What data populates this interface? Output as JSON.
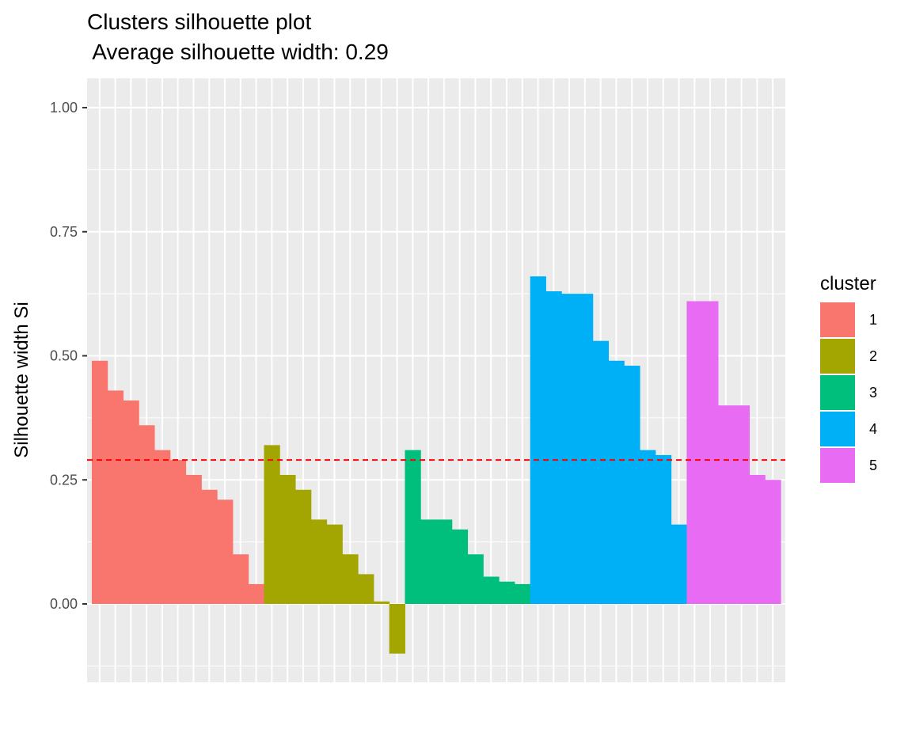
{
  "chart_data": {
    "type": "bar",
    "title": "Clusters silhouette plot",
    "subtitle": " Average silhouette width: 0.29",
    "xlabel": "",
    "ylabel": "Silhouette width Si",
    "ylim": [
      -0.16,
      1.06
    ],
    "y_ticks": [
      "0.00",
      "0.25",
      "0.50",
      "0.75",
      "1.00"
    ],
    "y_tick_values": [
      0,
      0.25,
      0.5,
      0.75,
      1.0
    ],
    "average_line": 0.29,
    "average_line_color": "#ff0000",
    "grid": true,
    "legend_title": "cluster",
    "legend_position": "right",
    "series": [
      {
        "name": "1",
        "color": "#F8766D",
        "values": [
          0.49,
          0.43,
          0.41,
          0.36,
          0.31,
          0.29,
          0.26,
          0.23,
          0.21,
          0.1,
          0.04
        ]
      },
      {
        "name": "2",
        "color": "#A3A500",
        "values": [
          0.32,
          0.26,
          0.23,
          0.17,
          0.16,
          0.1,
          0.06,
          0.005,
          -0.1
        ]
      },
      {
        "name": "3",
        "color": "#00BF7D",
        "values": [
          0.31,
          0.17,
          0.17,
          0.15,
          0.1,
          0.055,
          0.045,
          0.04
        ]
      },
      {
        "name": "4",
        "color": "#00B0F6",
        "values": [
          0.66,
          0.63,
          0.625,
          0.625,
          0.53,
          0.49,
          0.48,
          0.31,
          0.3,
          0.16
        ]
      },
      {
        "name": "5",
        "color": "#E76BF3",
        "values": [
          0.61,
          0.61,
          0.4,
          0.4,
          0.26,
          0.25
        ]
      }
    ]
  }
}
